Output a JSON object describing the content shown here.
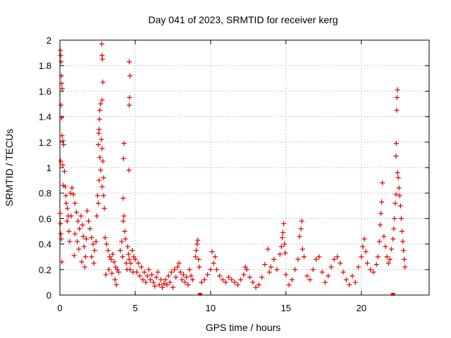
{
  "chart_data": {
    "type": "scatter",
    "title": "Day 041 of 2023, SRMTID for receiver kerg",
    "xlabel": "GPS time / hours",
    "ylabel": "SRMTID / TECUs",
    "xlim": [
      0,
      24.5
    ],
    "ylim": [
      0,
      2
    ],
    "x_ticks": [
      0,
      5,
      10,
      15,
      20
    ],
    "x_tick_labels": [
      "0",
      "5",
      "10",
      "15",
      "20"
    ],
    "y_ticks": [
      0,
      0.2,
      0.4,
      0.6,
      0.8,
      1,
      1.2,
      1.4,
      1.6,
      1.8,
      2
    ],
    "y_tick_labels": [
      "0",
      "0.2",
      "0.4",
      "0.6",
      "0.8",
      "1",
      "1.2",
      "1.4",
      "1.6",
      "1.8",
      "2"
    ],
    "grid": true,
    "marker": "+",
    "color": "#e00000",
    "series": [
      {
        "name": "SRMTID",
        "points": [
          [
            0.03,
            1.92
          ],
          [
            0.05,
            1.88
          ],
          [
            0.08,
            1.83
          ],
          [
            0.1,
            1.72
          ],
          [
            0.12,
            1.66
          ],
          [
            0.15,
            1.62
          ],
          [
            0.07,
            1.49
          ],
          [
            0.11,
            1.39
          ],
          [
            0.14,
            1.25
          ],
          [
            0.2,
            1.21
          ],
          [
            0.25,
            1.18
          ],
          [
            0.05,
            1.05
          ],
          [
            0.18,
            1.02
          ],
          [
            0.3,
            0.97
          ],
          [
            0.22,
            0.86
          ],
          [
            0.02,
            0.64
          ],
          [
            0.04,
            0.56
          ],
          [
            0.06,
            0.48
          ],
          [
            0.09,
            0.44
          ],
          [
            0.13,
            0.26
          ],
          [
            0.35,
            0.85
          ],
          [
            0.42,
            0.72
          ],
          [
            0.5,
            0.68
          ],
          [
            0.55,
            0.62
          ],
          [
            0.6,
            0.5
          ],
          [
            0.65,
            0.42
          ],
          [
            0.4,
            0.78
          ],
          [
            0.48,
            0.58
          ],
          [
            0.7,
            0.8
          ],
          [
            0.75,
            0.62
          ],
          [
            0.8,
            0.84
          ],
          [
            0.9,
            0.79
          ],
          [
            1.0,
            0.72
          ],
          [
            1.1,
            0.65
          ],
          [
            1.2,
            0.58
          ],
          [
            1.3,
            0.52
          ],
          [
            1.0,
            0.48
          ],
          [
            1.15,
            0.42
          ],
          [
            1.25,
            0.36
          ],
          [
            0.95,
            0.31
          ],
          [
            1.4,
            0.62
          ],
          [
            1.5,
            0.55
          ],
          [
            1.55,
            0.46
          ],
          [
            1.6,
            0.38
          ],
          [
            1.7,
            0.3
          ],
          [
            1.45,
            0.26
          ],
          [
            1.65,
            0.22
          ],
          [
            1.75,
            0.44
          ],
          [
            1.8,
            0.66
          ],
          [
            1.9,
            0.58
          ],
          [
            2.0,
            0.52
          ],
          [
            2.1,
            0.45
          ],
          [
            2.2,
            0.4
          ],
          [
            2.3,
            0.35
          ],
          [
            2.1,
            0.3
          ],
          [
            2.25,
            0.25
          ],
          [
            2.4,
            0.42
          ],
          [
            2.45,
            0.62
          ],
          [
            2.5,
            0.78
          ],
          [
            2.55,
            0.72
          ],
          [
            2.6,
            0.9
          ],
          [
            2.65,
            1.08
          ],
          [
            2.55,
            1.18
          ],
          [
            2.6,
            1.3
          ],
          [
            2.62,
            1.38
          ],
          [
            2.65,
            1.45
          ],
          [
            2.7,
            1.5
          ],
          [
            2.58,
            1.27
          ],
          [
            2.75,
            1.22
          ],
          [
            2.8,
            1.15
          ],
          [
            2.85,
            1.05
          ],
          [
            2.7,
            0.98
          ],
          [
            2.9,
            0.92
          ],
          [
            2.8,
            0.85
          ],
          [
            2.9,
            0.78
          ],
          [
            2.95,
            0.68
          ],
          [
            2.78,
            1.97
          ],
          [
            2.8,
            1.88
          ],
          [
            2.82,
            1.85
          ],
          [
            2.85,
            1.67
          ],
          [
            2.8,
            1.53
          ],
          [
            3.0,
            0.45
          ],
          [
            3.1,
            0.4
          ],
          [
            3.2,
            0.35
          ],
          [
            3.3,
            0.3
          ],
          [
            3.4,
            0.28
          ],
          [
            3.5,
            0.32
          ],
          [
            3.6,
            0.26
          ],
          [
            3.7,
            0.22
          ],
          [
            3.8,
            0.2
          ],
          [
            3.9,
            0.18
          ],
          [
            3.05,
            0.16
          ],
          [
            3.25,
            0.2
          ],
          [
            3.45,
            0.17
          ],
          [
            3.65,
            0.12
          ],
          [
            3.75,
            0.08
          ],
          [
            4.0,
            0.35
          ],
          [
            4.1,
            0.42
          ],
          [
            4.2,
            0.58
          ],
          [
            4.25,
            0.62
          ],
          [
            4.3,
            0.5
          ],
          [
            4.35,
            0.44
          ],
          [
            4.15,
            0.3
          ],
          [
            4.4,
            0.25
          ],
          [
            4.45,
            0.2
          ],
          [
            4.2,
            0.76
          ],
          [
            4.22,
            1.07
          ],
          [
            4.25,
            1.19
          ],
          [
            4.5,
            0.38
          ],
          [
            4.55,
            0.32
          ],
          [
            4.6,
            0.28
          ],
          [
            4.7,
            0.25
          ],
          [
            4.8,
            0.35
          ],
          [
            4.9,
            0.3
          ],
          [
            4.65,
            0.2
          ],
          [
            4.85,
            0.18
          ],
          [
            4.58,
            0.98
          ],
          [
            4.6,
            1.49
          ],
          [
            4.62,
            1.55
          ],
          [
            4.65,
            1.72
          ],
          [
            4.6,
            1.83
          ],
          [
            5.0,
            0.28
          ],
          [
            5.2,
            0.25
          ],
          [
            5.4,
            0.22
          ],
          [
            5.6,
            0.18
          ],
          [
            5.8,
            0.15
          ],
          [
            6.0,
            0.12
          ],
          [
            6.2,
            0.1
          ],
          [
            6.4,
            0.14
          ],
          [
            6.6,
            0.08
          ],
          [
            6.8,
            0.06
          ],
          [
            5.1,
            0.18
          ],
          [
            5.3,
            0.15
          ],
          [
            5.5,
            0.12
          ],
          [
            5.7,
            0.1
          ],
          [
            5.9,
            0.2
          ],
          [
            6.1,
            0.16
          ],
          [
            6.3,
            0.07
          ],
          [
            6.5,
            0.18
          ],
          [
            6.7,
            0.12
          ],
          [
            6.9,
            0.09
          ],
          [
            7.0,
            0.12
          ],
          [
            7.2,
            0.15
          ],
          [
            7.4,
            0.18
          ],
          [
            7.6,
            0.2
          ],
          [
            7.8,
            0.22
          ],
          [
            8.0,
            0.18
          ],
          [
            8.2,
            0.16
          ],
          [
            8.4,
            0.14
          ],
          [
            8.6,
            0.2
          ],
          [
            8.8,
            0.12
          ],
          [
            7.1,
            0.08
          ],
          [
            7.3,
            0.1
          ],
          [
            7.5,
            0.06
          ],
          [
            7.7,
            0.14
          ],
          [
            7.9,
            0.25
          ],
          [
            8.1,
            0.12
          ],
          [
            8.3,
            0.1
          ],
          [
            8.5,
            0.08
          ],
          [
            8.7,
            0.15
          ],
          [
            9.0,
            0.3
          ],
          [
            9.05,
            0.35
          ],
          [
            9.1,
            0.4
          ],
          [
            9.15,
            0.43
          ],
          [
            9.2,
            0.28
          ],
          [
            9.25,
            0.22
          ],
          [
            9.4,
            0.1
          ],
          [
            9.6,
            0.12
          ],
          [
            9.8,
            0.16
          ],
          [
            10.0,
            0.2
          ],
          [
            10.2,
            0.25
          ],
          [
            10.4,
            0.2
          ],
          [
            10.6,
            0.15
          ],
          [
            10.8,
            0.12
          ],
          [
            11.0,
            0.1
          ],
          [
            11.2,
            0.14
          ],
          [
            11.4,
            0.12
          ],
          [
            11.6,
            0.1
          ],
          [
            11.8,
            0.08
          ],
          [
            12.0,
            0.12
          ],
          [
            12.2,
            0.16
          ],
          [
            12.4,
            0.2
          ],
          [
            12.6,
            0.14
          ],
          [
            12.8,
            0.1
          ],
          [
            13.0,
            0.06
          ],
          [
            13.2,
            0.08
          ],
          [
            10.1,
            0.34
          ],
          [
            10.3,
            0.3
          ],
          [
            12.3,
            0.22
          ],
          [
            13.4,
            0.14
          ],
          [
            13.6,
            0.24
          ],
          [
            13.8,
            0.36
          ],
          [
            13.9,
            0.18
          ],
          [
            14.0,
            0.22
          ],
          [
            14.2,
            0.28
          ],
          [
            14.4,
            0.2
          ],
          [
            14.6,
            0.32
          ],
          [
            14.7,
            0.38
          ],
          [
            14.75,
            0.45
          ],
          [
            14.8,
            0.49
          ],
          [
            14.85,
            0.56
          ],
          [
            14.9,
            0.4
          ],
          [
            14.95,
            0.33
          ],
          [
            15.0,
            0.16
          ],
          [
            15.2,
            0.08
          ],
          [
            15.4,
            0.12
          ],
          [
            15.6,
            0.2
          ],
          [
            15.8,
            0.28
          ],
          [
            15.9,
            0.46
          ],
          [
            16.0,
            0.52
          ],
          [
            16.05,
            0.58
          ],
          [
            16.1,
            0.36
          ],
          [
            16.2,
            0.3
          ],
          [
            16.4,
            0.15
          ],
          [
            16.6,
            0.12
          ],
          [
            16.8,
            0.2
          ],
          [
            17.0,
            0.28
          ],
          [
            17.2,
            0.3
          ],
          [
            17.4,
            0.18
          ],
          [
            17.6,
            0.1
          ],
          [
            17.8,
            0.15
          ],
          [
            18.0,
            0.22
          ],
          [
            18.2,
            0.28
          ],
          [
            18.4,
            0.3
          ],
          [
            18.6,
            0.25
          ],
          [
            18.8,
            0.18
          ],
          [
            19.0,
            0.12
          ],
          [
            19.2,
            0.08
          ],
          [
            19.4,
            0.15
          ],
          [
            19.6,
            0.1
          ],
          [
            19.8,
            0.22
          ],
          [
            20.0,
            0.3
          ],
          [
            20.1,
            0.38
          ],
          [
            20.2,
            0.44
          ],
          [
            20.3,
            0.34
          ],
          [
            20.4,
            0.25
          ],
          [
            20.6,
            0.2
          ],
          [
            20.8,
            0.18
          ],
          [
            21.0,
            0.24
          ],
          [
            21.1,
            0.3
          ],
          [
            21.2,
            0.42
          ],
          [
            21.25,
            0.55
          ],
          [
            21.3,
            0.64
          ],
          [
            21.35,
            0.73
          ],
          [
            21.4,
            0.88
          ],
          [
            21.5,
            0.46
          ],
          [
            21.6,
            0.38
          ],
          [
            21.7,
            0.3
          ],
          [
            21.8,
            0.25
          ],
          [
            21.9,
            0.28
          ],
          [
            22.0,
            0.36
          ],
          [
            22.1,
            0.44
          ],
          [
            22.15,
            0.52
          ],
          [
            22.2,
            0.6
          ],
          [
            22.25,
            0.72
          ],
          [
            22.3,
            0.79
          ],
          [
            22.3,
            1.09
          ],
          [
            22.32,
            1.19
          ],
          [
            22.35,
            1.45
          ],
          [
            22.37,
            1.55
          ],
          [
            22.4,
            1.61
          ],
          [
            22.4,
            0.96
          ],
          [
            22.45,
            0.92
          ],
          [
            22.5,
            0.84
          ],
          [
            22.55,
            0.78
          ],
          [
            22.6,
            0.7
          ],
          [
            22.65,
            0.6
          ],
          [
            22.7,
            0.5
          ],
          [
            22.75,
            0.42
          ],
          [
            22.8,
            0.35
          ],
          [
            22.85,
            0.28
          ],
          [
            22.9,
            0.22
          ]
        ]
      }
    ],
    "zero_markers_x": [
      9.3,
      22.1
    ]
  }
}
